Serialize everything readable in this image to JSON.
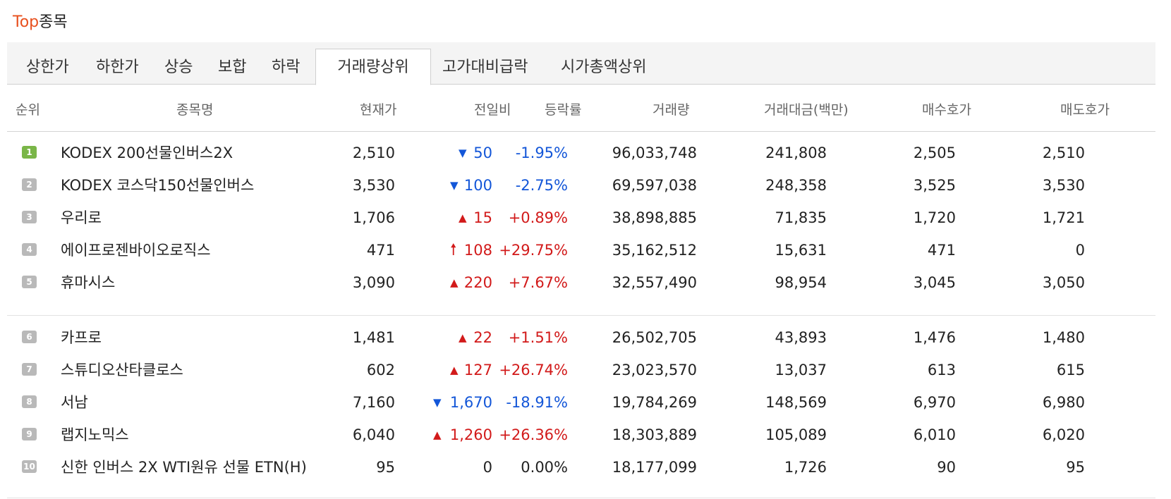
{
  "section_title": {
    "accent": "Top",
    "rest": "종목"
  },
  "tabs": [
    {
      "label": "상한가",
      "active": false
    },
    {
      "label": "하한가",
      "active": false
    },
    {
      "label": "상승",
      "active": false
    },
    {
      "label": "보합",
      "active": false
    },
    {
      "label": "하락",
      "active": false
    },
    {
      "label": "거래량상위",
      "active": true
    },
    {
      "label": "고가대비급락",
      "active": false
    },
    {
      "label": "시가총액상위",
      "active": false
    }
  ],
  "columns": {
    "rank": "순위",
    "name": "종목명",
    "price": "현재가",
    "change": "전일비",
    "rate": "등락률",
    "volume": "거래량",
    "amount": "거래대금(백만)",
    "bid": "매수호가",
    "ask": "매도호가"
  },
  "colors": {
    "up": "#d21a1a",
    "down": "#1356d8",
    "accent": "#e8501e",
    "rank_first": "#7ab648",
    "rank_other": "#b9b9b9"
  },
  "rows": [
    {
      "rank": "1",
      "name": "KODEX 200선물인버스2X",
      "price": "2,510",
      "direction": "down",
      "arrow_icon": "triangle-down-icon",
      "change": "50",
      "rate": "-1.95%",
      "volume": "96,033,748",
      "amount": "241,808",
      "bid": "2,505",
      "ask": "2,510"
    },
    {
      "rank": "2",
      "name": "KODEX 코스닥150선물인버스",
      "price": "3,530",
      "direction": "down",
      "arrow_icon": "triangle-down-icon",
      "change": "100",
      "rate": "-2.75%",
      "volume": "69,597,038",
      "amount": "248,358",
      "bid": "3,525",
      "ask": "3,530"
    },
    {
      "rank": "3",
      "name": "우리로",
      "price": "1,706",
      "direction": "up",
      "arrow_icon": "triangle-up-icon",
      "change": "15",
      "rate": "+0.89%",
      "volume": "38,898,885",
      "amount": "71,835",
      "bid": "1,720",
      "ask": "1,721"
    },
    {
      "rank": "4",
      "name": "에이프로젠바이오로직스",
      "price": "471",
      "direction": "upper",
      "arrow_icon": "upper-limit-arrow-icon",
      "change": "108",
      "rate": "+29.75%",
      "volume": "35,162,512",
      "amount": "15,631",
      "bid": "471",
      "ask": "0"
    },
    {
      "rank": "5",
      "name": "휴마시스",
      "price": "3,090",
      "direction": "up",
      "arrow_icon": "triangle-up-icon",
      "change": "220",
      "rate": "+7.67%",
      "volume": "32,557,490",
      "amount": "98,954",
      "bid": "3,045",
      "ask": "3,050"
    },
    {
      "rank": "6",
      "name": "카프로",
      "price": "1,481",
      "direction": "up",
      "arrow_icon": "triangle-up-icon",
      "change": "22",
      "rate": "+1.51%",
      "volume": "26,502,705",
      "amount": "43,893",
      "bid": "1,476",
      "ask": "1,480"
    },
    {
      "rank": "7",
      "name": "스튜디오산타클로스",
      "price": "602",
      "direction": "up",
      "arrow_icon": "triangle-up-icon",
      "change": "127",
      "rate": "+26.74%",
      "volume": "23,023,570",
      "amount": "13,037",
      "bid": "613",
      "ask": "615"
    },
    {
      "rank": "8",
      "name": "서남",
      "price": "7,160",
      "direction": "down",
      "arrow_icon": "triangle-down-icon",
      "change": "1,670",
      "rate": "-18.91%",
      "volume": "19,784,269",
      "amount": "148,569",
      "bid": "6,970",
      "ask": "6,980"
    },
    {
      "rank": "9",
      "name": "랩지노믹스",
      "price": "6,040",
      "direction": "up",
      "arrow_icon": "triangle-up-icon",
      "change": "1,260",
      "rate": "+26.36%",
      "volume": "18,303,889",
      "amount": "105,089",
      "bid": "6,010",
      "ask": "6,020"
    },
    {
      "rank": "10",
      "name": "신한 인버스 2X WTI원유 선물 ETN(H)",
      "price": "95",
      "direction": "flat",
      "arrow_icon": "",
      "change": "0",
      "rate": "0.00%",
      "volume": "18,177,099",
      "amount": "1,726",
      "bid": "90",
      "ask": "95"
    }
  ]
}
